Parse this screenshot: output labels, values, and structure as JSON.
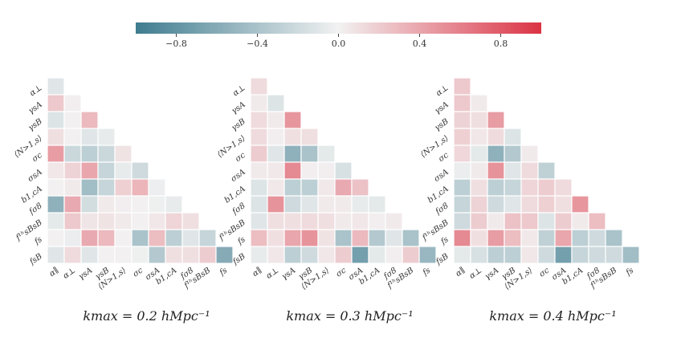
{
  "colorbar": {
    "min": -1.0,
    "max": 1.0,
    "ticks": [
      -0.8,
      -0.4,
      0.0,
      0.4,
      0.8
    ],
    "tick_labels": [
      "−0.8",
      "−0.4",
      "0.0",
      "0.4",
      "0.8"
    ],
    "colors": {
      "negative": "#3e7c8f",
      "zero": "#f2f2f2",
      "positive": "#db3344"
    }
  },
  "row_labels": [
    "α⊥",
    "γsA",
    "γsB",
    "⟨N>1,s⟩",
    "σc",
    "σsA",
    "b1,cA",
    "fσ8",
    "f¹ʰsBsB",
    "fs",
    "fsB"
  ],
  "col_labels": [
    "α∥",
    "α⊥",
    "γsA",
    "γsB",
    "⟨N>1,s⟩",
    "σc",
    "σsA",
    "b1,cA",
    "fσ8",
    "f¹ʰsBsB",
    "fs"
  ],
  "chart_data": [
    {
      "type": "heatmap",
      "title": "kmax = 0.2 hMpc⁻¹",
      "matrix": [
        [
          -0.1
        ],
        [
          0.22,
          0.02
        ],
        [
          -0.12,
          0.01,
          0.3
        ],
        [
          0.1,
          0.01,
          -0.1,
          -0.06
        ],
        [
          0.45,
          -0.22,
          -0.3,
          -0.22,
          0.08
        ],
        [
          0.06,
          0.16,
          0.4,
          -0.25,
          -0.06,
          -0.2
        ],
        [
          0.01,
          0.04,
          -0.45,
          -0.25,
          0.18,
          0.32,
          -0.03
        ],
        [
          -0.55,
          0.38,
          -0.18,
          0.04,
          0.02,
          0.01,
          -0.02,
          -0.06
        ],
        [
          -0.08,
          0.22,
          0.07,
          0.08,
          0.04,
          0.01,
          0.06,
          0.15,
          0.1
        ],
        [
          0.01,
          -0.04,
          0.38,
          0.3,
          0.01,
          -0.4,
          0.28,
          -0.3,
          -0.1,
          -0.25
        ],
        [
          -0.1,
          0.12,
          -0.1,
          0.01,
          0.01,
          -0.02,
          -0.35,
          0.1,
          0.1,
          0.2,
          -0.6
        ]
      ]
    },
    {
      "type": "heatmap",
      "title": "kmax = 0.3 hMpc⁻¹",
      "matrix": [
        [
          0.12
        ],
        [
          0.04,
          -0.12
        ],
        [
          0.12,
          0.04,
          0.48
        ],
        [
          0.12,
          0.02,
          0.1,
          0.1
        ],
        [
          0.2,
          -0.1,
          -0.55,
          -0.4,
          -0.08
        ],
        [
          0.04,
          0.05,
          0.55,
          0.02,
          0.02,
          -0.15
        ],
        [
          -0.12,
          0.05,
          -0.3,
          -0.3,
          0.05,
          0.38,
          0.25
        ],
        [
          -0.12,
          0.5,
          -0.2,
          -0.1,
          0.04,
          0.04,
          -0.06,
          -0.08
        ],
        [
          -0.1,
          0.1,
          0.1,
          0.12,
          0.1,
          0.04,
          0.06,
          0.02,
          0.04
        ],
        [
          0.28,
          0.1,
          0.4,
          0.5,
          0.08,
          -0.4,
          0.3,
          -0.35,
          -0.1,
          -0.4
        ],
        [
          -0.06,
          0.06,
          -0.3,
          -0.2,
          0.06,
          0.2,
          -0.7,
          -0.08,
          0.02,
          0.2,
          -0.5
        ]
      ]
    },
    {
      "type": "heatmap",
      "title": "kmax = 0.4 hMpc⁻¹",
      "matrix": [
        [
          0.22
        ],
        [
          0.22,
          0.04
        ],
        [
          0.16,
          0.1,
          0.45
        ],
        [
          0.18,
          0.06,
          0.12,
          -0.12
        ],
        [
          0.14,
          -0.08,
          -0.55,
          -0.35,
          0.04
        ],
        [
          -0.04,
          0.04,
          0.5,
          -0.1,
          0.12,
          -0.28
        ],
        [
          -0.3,
          0.1,
          -0.3,
          -0.25,
          0.15,
          0.2,
          0.12
        ],
        [
          -0.25,
          0.16,
          -0.2,
          -0.1,
          0.12,
          0.18,
          0.1,
          0.48
        ],
        [
          -0.2,
          0.2,
          0.04,
          0.25,
          0.22,
          -0.12,
          0.2,
          0.04,
          0.28
        ],
        [
          0.55,
          0.1,
          0.45,
          0.28,
          0.05,
          -0.28,
          0.4,
          -0.3,
          -0.2,
          -0.4
        ],
        [
          -0.08,
          -0.15,
          -0.3,
          -0.3,
          0.06,
          -0.2,
          -0.7,
          -0.25,
          -0.2,
          -0.2,
          -0.45
        ]
      ]
    }
  ]
}
